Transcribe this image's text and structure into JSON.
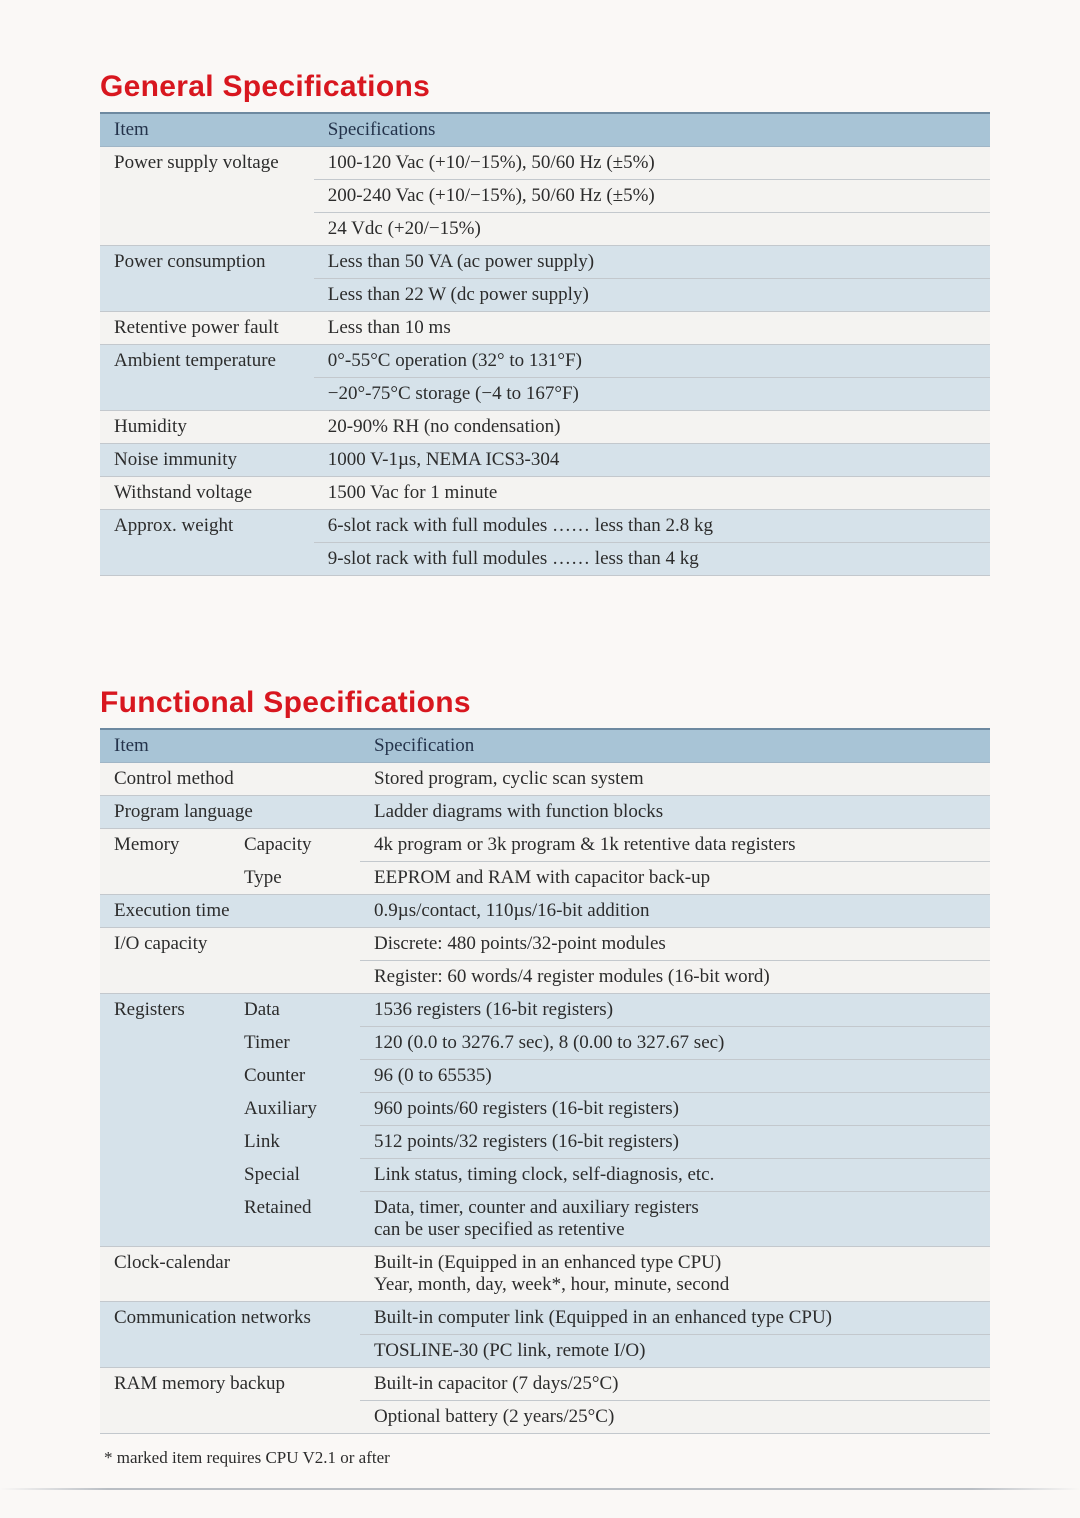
{
  "colors": {
    "title": "#d8171f",
    "header_bg": "#a8c4d6",
    "row_even_bg": "#d6e2ea",
    "row_odd_bg": "#f4f3f1",
    "row_border": "#c3c8cd",
    "header_border_top": "#6d89a0",
    "page_bg": "#faf8f6",
    "text": "#2c2c2c",
    "header_text": "#24334b"
  },
  "typography": {
    "title_family": "Helvetica",
    "title_weight": 800,
    "title_size_pt": 22,
    "body_family": "Times New Roman",
    "body_size_pt": 14
  },
  "general": {
    "title": "General Specifications",
    "headers": {
      "item": "Item",
      "spec": "Specifications"
    },
    "rows": [
      {
        "item": "Power supply voltage",
        "spec": "100-120 Vac (+10/−15%), 50/60 Hz (±5%)",
        "group_first": true
      },
      {
        "item": "",
        "spec": "200-240 Vac (+10/−15%), 50/60 Hz (±5%)"
      },
      {
        "item": "",
        "spec": "24 Vdc (+20/−15%)"
      },
      {
        "item": "Power consumption",
        "spec": "Less than 50 VA (ac power supply)",
        "group_first": true
      },
      {
        "item": "",
        "spec": "Less than 22 W (dc power supply)"
      },
      {
        "item": "Retentive power fault",
        "spec": "Less than 10 ms",
        "group_first": true
      },
      {
        "item": "Ambient temperature",
        "spec": "0°-55°C operation (32° to 131°F)",
        "group_first": true
      },
      {
        "item": "",
        "spec": "−20°-75°C storage (−4 to 167°F)"
      },
      {
        "item": "Humidity",
        "spec": "20-90% RH (no condensation)",
        "group_first": true
      },
      {
        "item": "Noise immunity",
        "spec": "1000 V-1µs, NEMA ICS3-304",
        "group_first": true
      },
      {
        "item": "Withstand voltage",
        "spec": "1500 Vac for 1 minute",
        "group_first": true
      },
      {
        "item": "Approx. weight",
        "spec": "6-slot rack with full modules …… less than 2.8 kg",
        "group_first": true
      },
      {
        "item": "",
        "spec": "9-slot rack with full modules …… less than 4 kg"
      }
    ]
  },
  "functional": {
    "title": "Functional Specifications",
    "headers": {
      "item": "Item",
      "spec": "Specification"
    },
    "rows": [
      {
        "item": "Control method",
        "sub": "",
        "spec": "Stored program, cyclic scan system",
        "group_first": true
      },
      {
        "item": "Program language",
        "sub": "",
        "spec": "Ladder diagrams with function blocks",
        "group_first": true
      },
      {
        "item": "Memory",
        "sub": "Capacity",
        "spec": "4k program or 3k program & 1k retentive data registers",
        "group_first": true
      },
      {
        "item": "",
        "sub": "Type",
        "spec": "EEPROM and RAM with capacitor back-up"
      },
      {
        "item": "Execution time",
        "sub": "",
        "spec": "0.9µs/contact, 110µs/16-bit addition",
        "group_first": true
      },
      {
        "item": "I/O capacity",
        "sub": "",
        "spec": "Discrete: 480 points/32-point modules",
        "group_first": true
      },
      {
        "item": "",
        "sub": "",
        "spec": "Register: 60 words/4 register modules (16-bit word)"
      },
      {
        "item": "Registers",
        "sub": "Data",
        "spec": "1536 registers (16-bit registers)",
        "group_first": true
      },
      {
        "item": "",
        "sub": "Timer",
        "spec": "120 (0.0 to 3276.7 sec), 8 (0.00 to 327.67 sec)"
      },
      {
        "item": "",
        "sub": "Counter",
        "spec": "96 (0 to 65535)"
      },
      {
        "item": "",
        "sub": "Auxiliary",
        "spec": "960 points/60 registers (16-bit registers)"
      },
      {
        "item": "",
        "sub": "Link",
        "spec": "512 points/32 registers (16-bit registers)"
      },
      {
        "item": "",
        "sub": "Special",
        "spec": "Link status, timing clock, self-diagnosis, etc."
      },
      {
        "item": "",
        "sub": "Retained",
        "spec": "Data, timer, counter and auxiliary registers\ncan be user specified as retentive"
      },
      {
        "item": "Clock-calendar",
        "sub": "",
        "spec": "Built-in (Equipped in an enhanced type CPU)\nYear, month, day, week*, hour, minute, second",
        "group_first": true
      },
      {
        "item": "Communication networks",
        "sub": "",
        "spec": "Built-in computer link (Equipped in an enhanced type CPU)",
        "group_first": true
      },
      {
        "item": "",
        "sub": "",
        "spec": "TOSLINE-30 (PC link, remote I/O)"
      },
      {
        "item": "RAM memory backup",
        "sub": "",
        "spec": "Built-in capacitor (7 days/25°C)",
        "group_first": true
      },
      {
        "item": "",
        "sub": "",
        "spec": "Optional battery (2 years/25°C)"
      }
    ],
    "footnote": "* marked item requires CPU V2.1 or after"
  }
}
